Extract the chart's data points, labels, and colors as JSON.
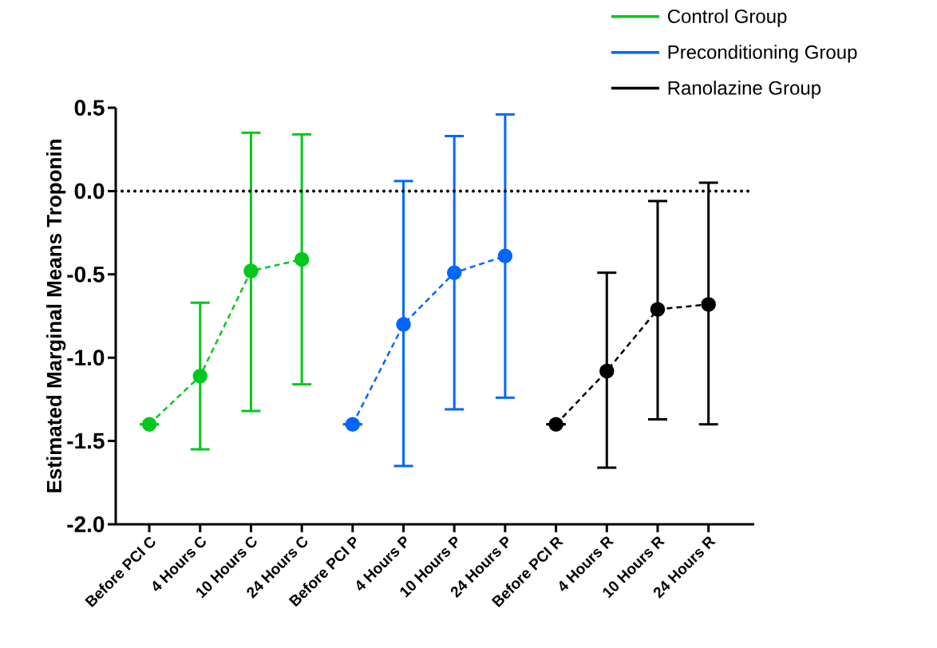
{
  "chart_data": {
    "type": "line",
    "ylabel": "Estimated Marginal Means Troponin",
    "categories": [
      "Before PCI C",
      "4 Hours C",
      "10 Hours C",
      "24 Hours C",
      "Before PCI P",
      "4 Hours P",
      "10 Hours P",
      "24 Hours P",
      "Before PCI R",
      "4 Hours R",
      "10 Hours R",
      "24 Hours R"
    ],
    "series": [
      {
        "name": "Control Group",
        "color": "#00c81e",
        "values": [
          -1.4,
          -1.11,
          -0.48,
          -0.41,
          null,
          null,
          null,
          null,
          null,
          null,
          null,
          null
        ],
        "errors": [
          null,
          [
            -1.55,
            -0.67
          ],
          [
            -1.32,
            0.35
          ],
          [
            -1.16,
            0.34
          ],
          null,
          null,
          null,
          null,
          null,
          null,
          null,
          null
        ]
      },
      {
        "name": "Preconditioning Group",
        "color": "#0066ff",
        "values": [
          null,
          null,
          null,
          null,
          -1.4,
          -0.8,
          -0.49,
          -0.39,
          null,
          null,
          null,
          null
        ],
        "errors": [
          null,
          null,
          null,
          null,
          null,
          [
            -1.65,
            0.06
          ],
          [
            -1.31,
            0.33
          ],
          [
            -1.24,
            0.46
          ],
          null,
          null,
          null,
          null
        ]
      },
      {
        "name": "Ranolazine Group",
        "color": "#000000",
        "values": [
          null,
          null,
          null,
          null,
          null,
          null,
          null,
          null,
          -1.4,
          -1.08,
          -0.71,
          -0.68
        ],
        "errors": [
          null,
          null,
          null,
          null,
          null,
          null,
          null,
          null,
          null,
          [
            -1.66,
            -0.49
          ],
          [
            -1.37,
            -0.06
          ],
          [
            -1.4,
            0.05
          ]
        ]
      }
    ],
    "ylim": [
      -2.0,
      0.5
    ],
    "yticks": [
      {
        "value": -2.0,
        "label": "-2.0"
      },
      {
        "value": -1.5,
        "label": "-1.5"
      },
      {
        "value": -1.0,
        "label": "-1.0"
      },
      {
        "value": -0.5,
        "label": "-0.5"
      },
      {
        "value": 0.0,
        "label": "0.0"
      },
      {
        "value": 0.5,
        "label": "0.5"
      }
    ],
    "ref_lines": [
      {
        "axis": "y",
        "value": 0,
        "line_style": "dotted",
        "color": "#000000"
      }
    ],
    "marker": "circle",
    "line_style": "dashed",
    "legend": "top right",
    "grid": false
  }
}
